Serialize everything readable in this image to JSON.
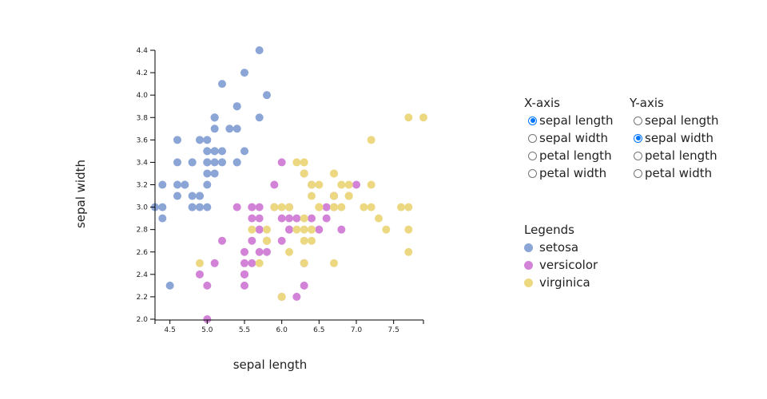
{
  "chart_data": {
    "type": "scatter",
    "xlabel": "sepal length",
    "ylabel": "sepal width",
    "xlim": [
      4.3,
      7.9
    ],
    "ylim": [
      2.0,
      4.4
    ],
    "x_ticks": [
      "4.5",
      "5.0",
      "5.5",
      "6.0",
      "6.5",
      "7.0",
      "7.5"
    ],
    "y_ticks": [
      "2.0",
      "2.2",
      "2.4",
      "2.6",
      "2.8",
      "3.0",
      "3.2",
      "3.4",
      "3.6",
      "3.8",
      "4.0",
      "4.2",
      "4.4"
    ],
    "series": [
      {
        "name": "setosa",
        "color": "#8aa5d6",
        "x": [
          5.1,
          4.9,
          4.7,
          4.6,
          5.0,
          5.4,
          4.6,
          5.0,
          4.4,
          4.9,
          5.4,
          4.8,
          4.8,
          4.3,
          5.8,
          5.7,
          5.4,
          5.1,
          5.7,
          5.1,
          5.4,
          5.1,
          4.6,
          5.1,
          4.8,
          5.0,
          5.0,
          5.2,
          5.2,
          4.7,
          4.8,
          5.4,
          5.2,
          5.5,
          4.9,
          5.0,
          5.5,
          4.9,
          4.4,
          5.1,
          5.0,
          4.5,
          4.4,
          5.0,
          5.1,
          4.8,
          5.1,
          4.6,
          5.3,
          5.0
        ],
        "y": [
          3.5,
          3.0,
          3.2,
          3.1,
          3.6,
          3.9,
          3.4,
          3.4,
          2.9,
          3.1,
          3.7,
          3.4,
          3.0,
          3.0,
          4.0,
          4.4,
          3.9,
          3.5,
          3.8,
          3.8,
          3.4,
          3.7,
          3.6,
          3.3,
          3.4,
          3.0,
          3.4,
          3.5,
          3.4,
          3.2,
          3.1,
          3.4,
          4.1,
          4.2,
          3.1,
          3.2,
          3.5,
          3.6,
          3.0,
          3.4,
          3.5,
          2.3,
          3.2,
          3.5,
          3.8,
          3.0,
          3.8,
          3.2,
          3.7,
          3.3
        ]
      },
      {
        "name": "versicolor",
        "color": "#d283d8",
        "x": [
          7.0,
          6.4,
          6.9,
          5.5,
          6.5,
          5.7,
          6.3,
          4.9,
          6.6,
          5.2,
          5.0,
          5.9,
          6.0,
          6.1,
          5.6,
          6.7,
          5.6,
          5.8,
          6.2,
          5.6,
          5.9,
          6.1,
          6.3,
          6.1,
          6.4,
          6.6,
          6.8,
          6.7,
          6.0,
          5.7,
          5.5,
          5.5,
          5.8,
          6.0,
          5.4,
          6.0,
          6.7,
          6.3,
          5.6,
          5.5,
          5.5,
          6.1,
          5.8,
          5.0,
          5.6,
          5.7,
          5.7,
          6.2,
          5.1,
          5.7
        ],
        "y": [
          3.2,
          3.2,
          3.1,
          2.3,
          2.8,
          2.8,
          3.3,
          2.4,
          2.9,
          2.7,
          2.0,
          3.0,
          2.2,
          2.9,
          2.9,
          3.1,
          3.0,
          2.7,
          2.2,
          2.5,
          3.2,
          2.8,
          2.5,
          2.8,
          2.9,
          3.0,
          2.8,
          3.0,
          2.9,
          2.6,
          2.4,
          2.4,
          2.7,
          2.7,
          3.0,
          3.4,
          3.1,
          2.3,
          3.0,
          2.5,
          2.6,
          3.0,
          2.6,
          2.3,
          2.7,
          3.0,
          2.9,
          2.9,
          2.5,
          2.8
        ]
      },
      {
        "name": "virginica",
        "color": "#ecd880",
        "x": [
          6.3,
          5.8,
          7.1,
          6.3,
          6.5,
          7.6,
          4.9,
          7.3,
          6.7,
          7.2,
          6.5,
          6.4,
          6.8,
          5.7,
          5.8,
          6.4,
          6.5,
          7.7,
          7.7,
          6.0,
          6.9,
          5.6,
          7.7,
          6.3,
          6.7,
          7.2,
          6.2,
          6.1,
          6.4,
          7.2,
          7.4,
          7.9,
          6.4,
          6.3,
          6.1,
          7.7,
          6.3,
          6.4,
          6.0,
          6.9,
          6.7,
          6.9,
          5.8,
          6.8,
          6.7,
          6.7,
          6.3,
          6.5,
          6.2,
          5.9
        ],
        "y": [
          3.3,
          2.7,
          3.0,
          2.9,
          3.0,
          3.0,
          2.5,
          2.9,
          2.5,
          3.6,
          3.2,
          2.7,
          3.0,
          2.5,
          2.8,
          3.2,
          3.0,
          3.8,
          2.6,
          2.2,
          3.2,
          2.8,
          2.8,
          2.7,
          3.3,
          3.2,
          2.8,
          3.0,
          2.8,
          3.0,
          2.8,
          3.8,
          2.8,
          2.8,
          2.6,
          3.0,
          3.4,
          3.1,
          3.0,
          3.1,
          3.1,
          3.1,
          2.7,
          3.2,
          3.3,
          3.0,
          2.5,
          3.0,
          3.4,
          3.0
        ]
      }
    ]
  },
  "controls": {
    "x_axis": {
      "title": "X-axis",
      "options": [
        "sepal length",
        "sepal width",
        "petal length",
        "petal width"
      ],
      "selected": "sepal length"
    },
    "y_axis": {
      "title": "Y-axis",
      "options": [
        "sepal length",
        "sepal width",
        "petal length",
        "petal width"
      ],
      "selected": "sepal width"
    }
  },
  "legend": {
    "title": "Legends",
    "items": [
      {
        "label": "setosa",
        "color": "#8aa5d6"
      },
      {
        "label": "versicolor",
        "color": "#d283d8"
      },
      {
        "label": "virginica",
        "color": "#ecd880"
      }
    ]
  }
}
